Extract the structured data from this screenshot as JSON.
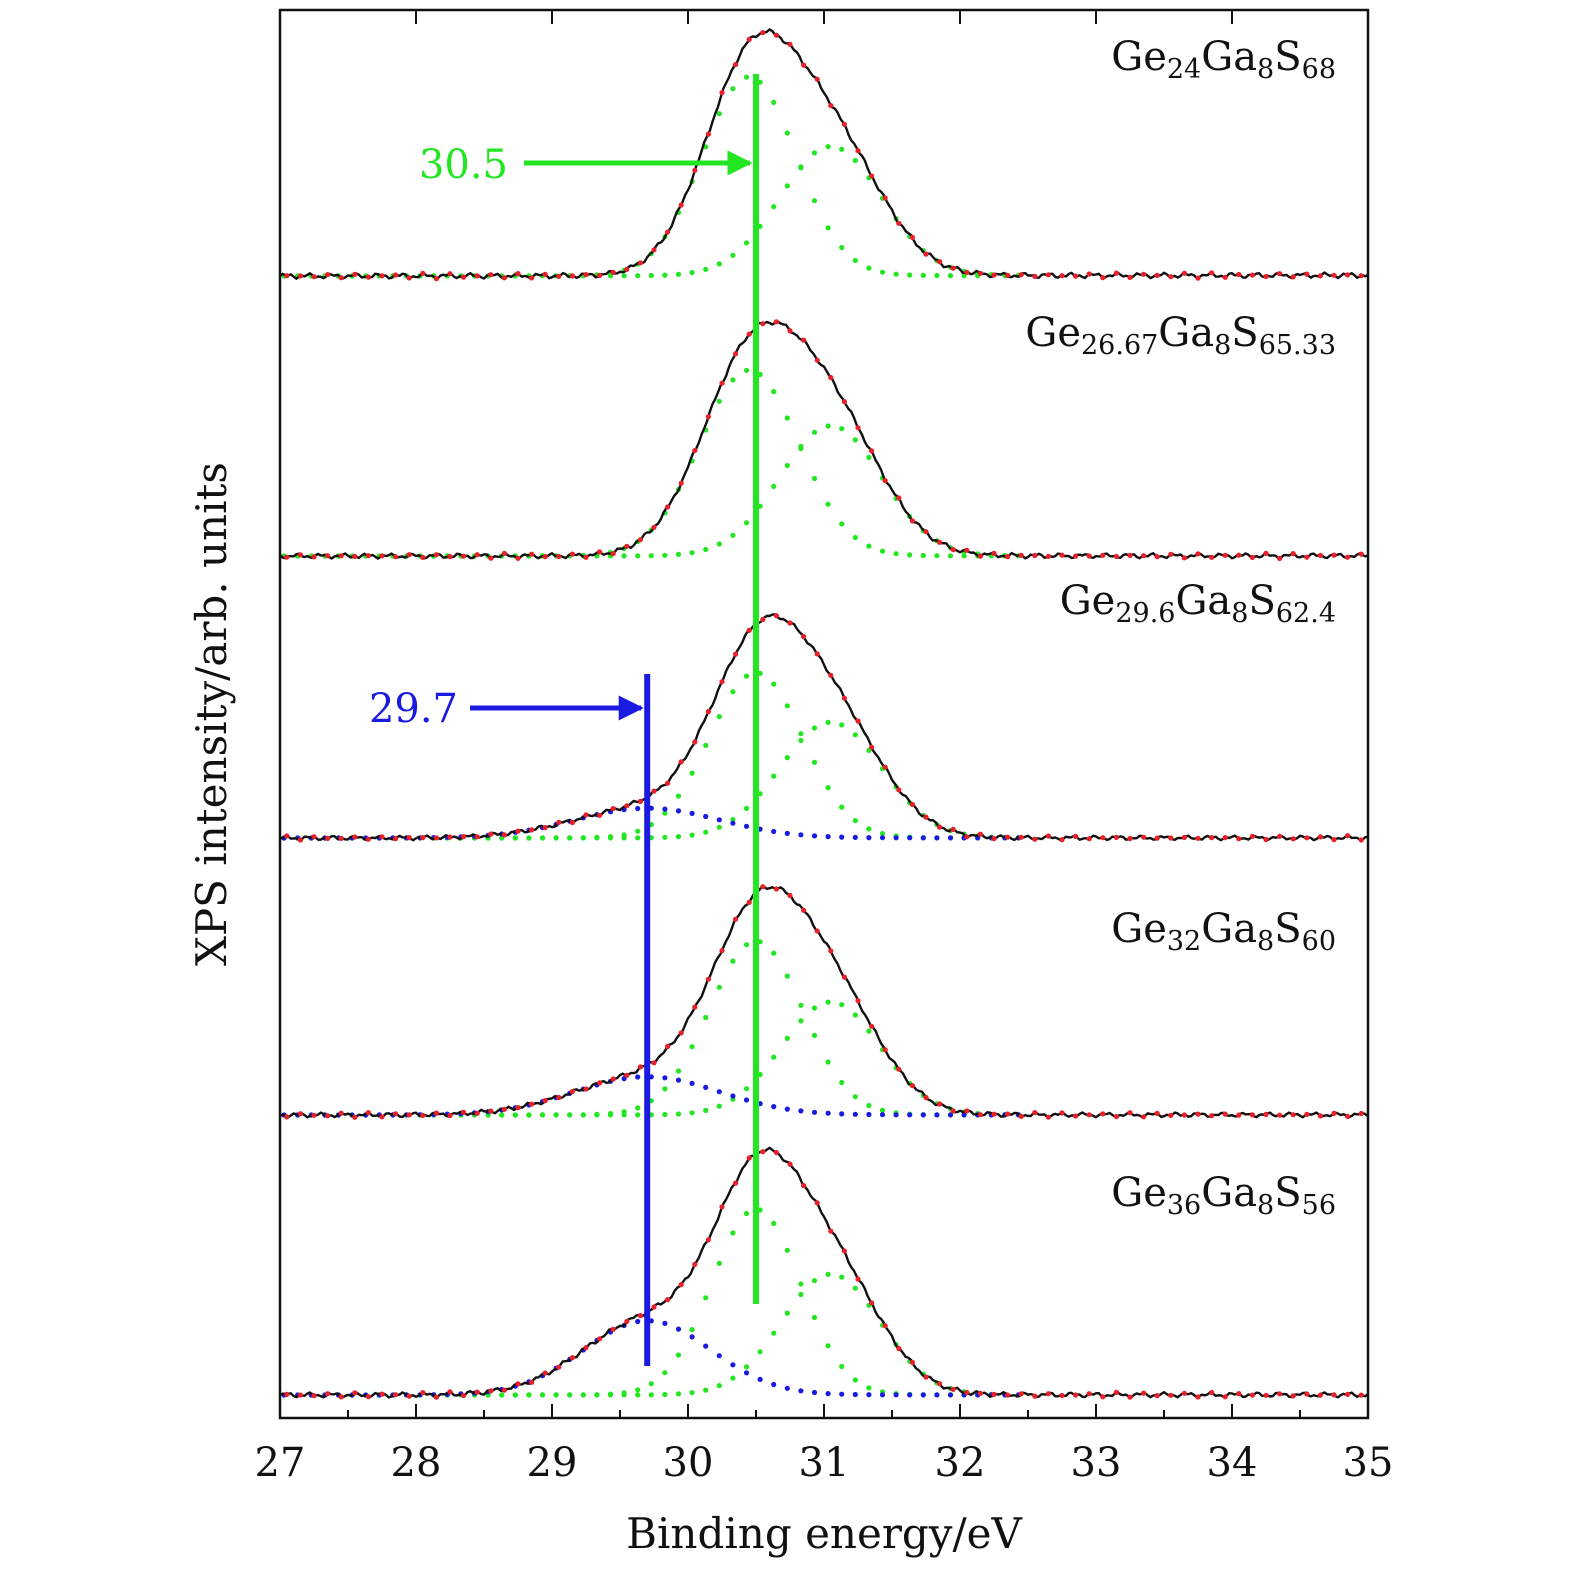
{
  "chart_data": {
    "type": "line",
    "title": "",
    "xlabel": "Binding energy/eV",
    "ylabel": "XPS intensity/arb. units",
    "xlim": [
      27,
      35
    ],
    "xticks": [
      "27",
      "28",
      "29",
      "30",
      "31",
      "32",
      "33",
      "34",
      "35"
    ],
    "grid": false,
    "legend": "none",
    "colors": {
      "measured": "#e8202a",
      "fit": "#111111",
      "component_main": "#22e622",
      "component_low": "#1a1ae0",
      "marker_main": "#22e622",
      "marker_low": "#1a1ae0"
    },
    "samples": [
      {
        "label": "Ge24Ga8S68",
        "label_parts": [
          {
            "t": "Ge"
          },
          {
            "s": "24"
          },
          {
            "t": "Ga"
          },
          {
            "s": "8"
          },
          {
            "t": "S"
          },
          {
            "s": "68"
          }
        ],
        "baseline_left": 0.05,
        "baseline_right": 0.2,
        "components": [
          {
            "center": 30.45,
            "height": 1.0,
            "width": 0.55,
            "color": "component_main"
          },
          {
            "center": 31.05,
            "height": 0.65,
            "width": 0.6,
            "color": "component_main"
          }
        ]
      },
      {
        "label": "Ge26.67Ga8S65.33",
        "label_parts": [
          {
            "t": "Ge"
          },
          {
            "s": "26.67"
          },
          {
            "t": "Ga"
          },
          {
            "s": "8"
          },
          {
            "t": "S"
          },
          {
            "s": "65.33"
          }
        ],
        "baseline_left": 0.0,
        "baseline_right": 0.05,
        "components": [
          {
            "center": 30.45,
            "height": 1.0,
            "width": 0.58,
            "color": "component_main"
          },
          {
            "center": 31.05,
            "height": 0.7,
            "width": 0.6,
            "color": "component_main"
          }
        ]
      },
      {
        "label": "Ge29.6Ga8S62.4",
        "label_parts": [
          {
            "t": "Ge"
          },
          {
            "s": "29.6"
          },
          {
            "t": "Ga"
          },
          {
            "s": "8"
          },
          {
            "t": "S"
          },
          {
            "s": "62.4"
          }
        ],
        "baseline_left": 0.0,
        "baseline_right": 0.05,
        "components": [
          {
            "center": 30.5,
            "height": 1.0,
            "width": 0.55,
            "color": "component_main"
          },
          {
            "center": 31.05,
            "height": 0.7,
            "width": 0.6,
            "color": "component_main"
          },
          {
            "center": 29.7,
            "height": 0.18,
            "width": 0.85,
            "color": "component_low"
          }
        ]
      },
      {
        "label": "Ge32Ga8S60",
        "label_parts": [
          {
            "t": "Ge"
          },
          {
            "s": "32"
          },
          {
            "t": "Ga"
          },
          {
            "s": "8"
          },
          {
            "t": "S"
          },
          {
            "s": "60"
          }
        ],
        "baseline_left": 0.0,
        "baseline_right": 0.05,
        "components": [
          {
            "center": 30.5,
            "height": 1.0,
            "width": 0.55,
            "color": "component_main"
          },
          {
            "center": 31.05,
            "height": 0.65,
            "width": 0.58,
            "color": "component_main"
          },
          {
            "center": 29.7,
            "height": 0.22,
            "width": 0.85,
            "color": "component_low"
          }
        ]
      },
      {
        "label": "Ge36Ga8S56",
        "label_parts": [
          {
            "t": "Ge"
          },
          {
            "s": "36"
          },
          {
            "t": "Ga"
          },
          {
            "s": "8"
          },
          {
            "t": "S"
          },
          {
            "s": "56"
          }
        ],
        "baseline_left": 0.0,
        "baseline_right": 0.05,
        "components": [
          {
            "center": 30.5,
            "height": 1.0,
            "width": 0.52,
            "color": "component_main"
          },
          {
            "center": 31.05,
            "height": 0.65,
            "width": 0.58,
            "color": "component_main"
          },
          {
            "center": 29.7,
            "height": 0.4,
            "width": 0.75,
            "color": "component_low"
          }
        ]
      }
    ],
    "markers": [
      {
        "label": "30.5",
        "x": 30.5,
        "color": "marker_main"
      },
      {
        "label": "29.7",
        "x": 29.7,
        "color": "marker_low"
      }
    ]
  }
}
